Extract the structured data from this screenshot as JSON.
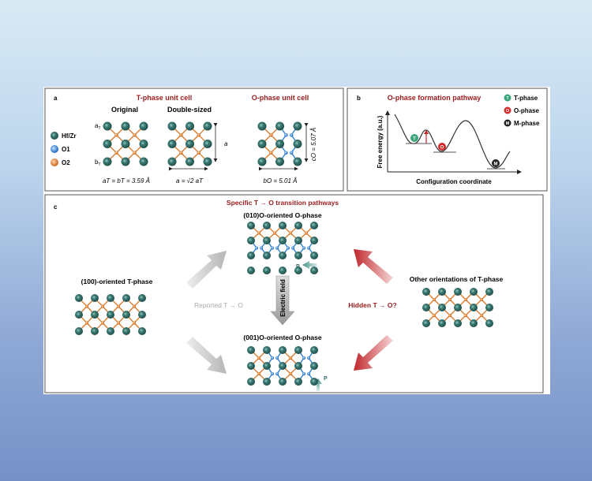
{
  "colors": {
    "hfzr": "#2f6b66",
    "o1": "#1f7ad6",
    "o2": "#d9792a",
    "title_red": "#9b1c1c",
    "arrow_gray": "#c8c8c8",
    "arrow_red": "#c0262b"
  },
  "panel_a": {
    "label": "a",
    "title_t": "T-phase unit cell",
    "title_o": "O-phase unit cell",
    "original": "Original",
    "double": "Double-sized",
    "legend": [
      {
        "label": "Hf/Zr",
        "icon": "hfzr-atom-icon"
      },
      {
        "label": "O1",
        "icon": "o1-atom-icon"
      },
      {
        "label": "O2",
        "icon": "o2-atom-icon"
      }
    ],
    "aT": "a",
    "aT_sub": "T",
    "bT": "b",
    "bT_sub": "T",
    "eq_original": "aT = bT = 3.59 Å",
    "eq_double": "a = √2 aT",
    "dim_a": "a",
    "eq_bo": "bO = 5.01 Å",
    "eq_co": "cO = 5.07 Å"
  },
  "panel_b": {
    "label": "b",
    "title": "O-phase formation pathway",
    "ylabel": "Free energy (a.u.)",
    "xlabel": "Configuration coordinate",
    "legend": [
      {
        "mark": "T",
        "label": "T-phase",
        "color": "#3aa57a"
      },
      {
        "mark": "O",
        "label": "O-phase",
        "color": "#d42a2a"
      },
      {
        "mark": "M",
        "label": "M-phase",
        "color": "#222222"
      }
    ]
  },
  "panel_c": {
    "label": "c",
    "title": "Specific T → O transition pathways",
    "top_label": "(010)O-oriented O-phase",
    "bottom_label": "(001)O-oriented O-phase",
    "left_label": "(100)-oriented T-phase",
    "right_label": "Other orientations of T-phase",
    "reported": "Reported T → O",
    "hidden": "Hidden T → O?",
    "field": "Electric field",
    "p": "P"
  }
}
